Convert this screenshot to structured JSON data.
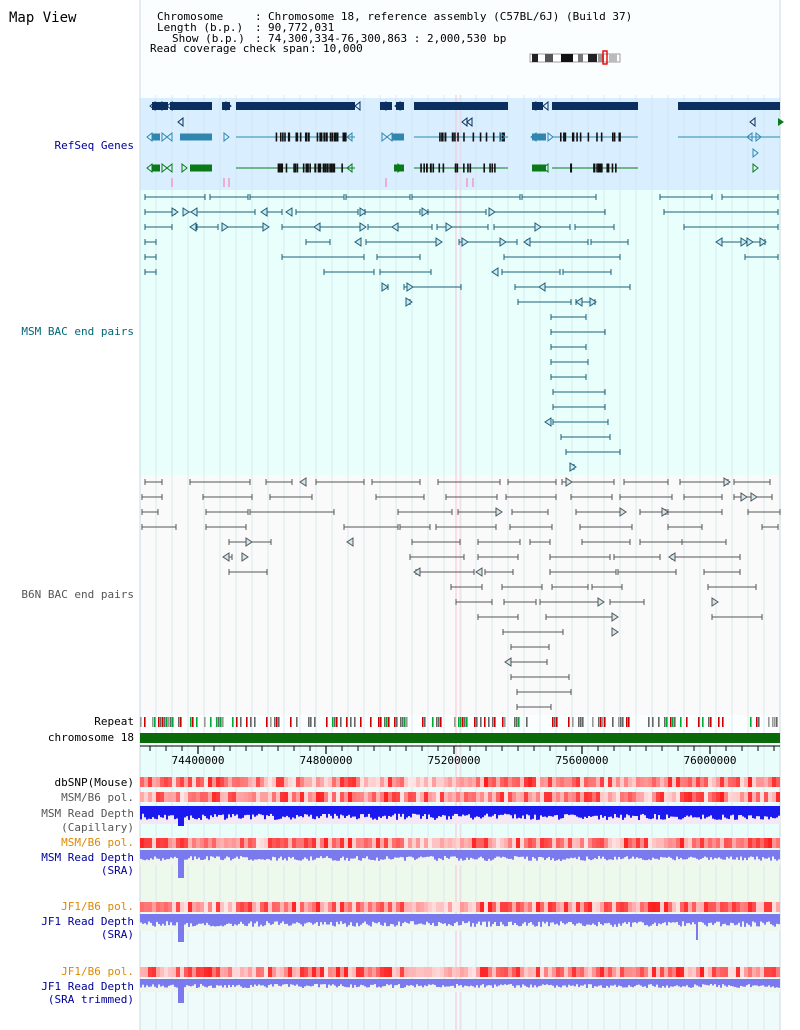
{
  "page": {
    "title": "Map View"
  },
  "header": {
    "chromosome_label": "Chromosome",
    "chromosome_value": "Chromosome 18, reference assembly (C57BL/6J) (Build 37)",
    "length_label": "Length (b.p.)",
    "length_value": "90,772,031",
    "show_label": "Show (b.p.)",
    "show_value": "74,300,334-76,300,863 : 2,000,530 bp",
    "coverage_label": "Read coverage check span",
    "coverage_value": "10,000"
  },
  "tracks": {
    "refseq": "RefSeq Genes",
    "msm_bac": "MSM BAC end pairs",
    "b6n_bac": "B6N BAC end pairs",
    "repeat": "Repeat",
    "chromosome": "chromosome 18",
    "dbsnp": "dbSNP(Mouse)",
    "msm_b6_pol": "MSM/B6 pol.",
    "msm_depth_cap_1": "MSM Read Depth",
    "msm_depth_cap_2": "(Capillary)",
    "msm_b6_pol_2": "MSM/B6 pol.",
    "msm_depth_sra_1": "MSM Read Depth",
    "msm_depth_sra_2": "(SRA)",
    "jf1_b6_pol": "JF1/B6 pol.",
    "jf1_depth_sra_1": "JF1 Read Depth",
    "jf1_depth_sra_2": "(SRA)",
    "jf1_b6_pol_2": "JF1/B6 pol.",
    "jf1_depth_trim_1": "JF1 Read Depth",
    "jf1_depth_trim_2": "(SRA trimmed)"
  },
  "axis": {
    "ticks": [
      "74400000",
      "74800000",
      "75200000",
      "75600000",
      "76000000"
    ]
  },
  "colors": {
    "refseq_bg": "#d9efff",
    "bac_bg": "#e8fffc",
    "gene_dark": "#0b2f5e",
    "gene_mid": "#2f87b0",
    "gene_green": "#0a7a18",
    "msm_bac": "#1a5f78",
    "b6n_bac": "#555555",
    "chromosome_bar": "#0a6a0a",
    "depth_cap": "#1a1aee",
    "depth_sra": "#7a7aee",
    "pol_red": "#e83030",
    "label_navy": "#000099",
    "label_teal": "#006677",
    "label_orange": "#dd8800",
    "label_grey": "#555555"
  }
}
